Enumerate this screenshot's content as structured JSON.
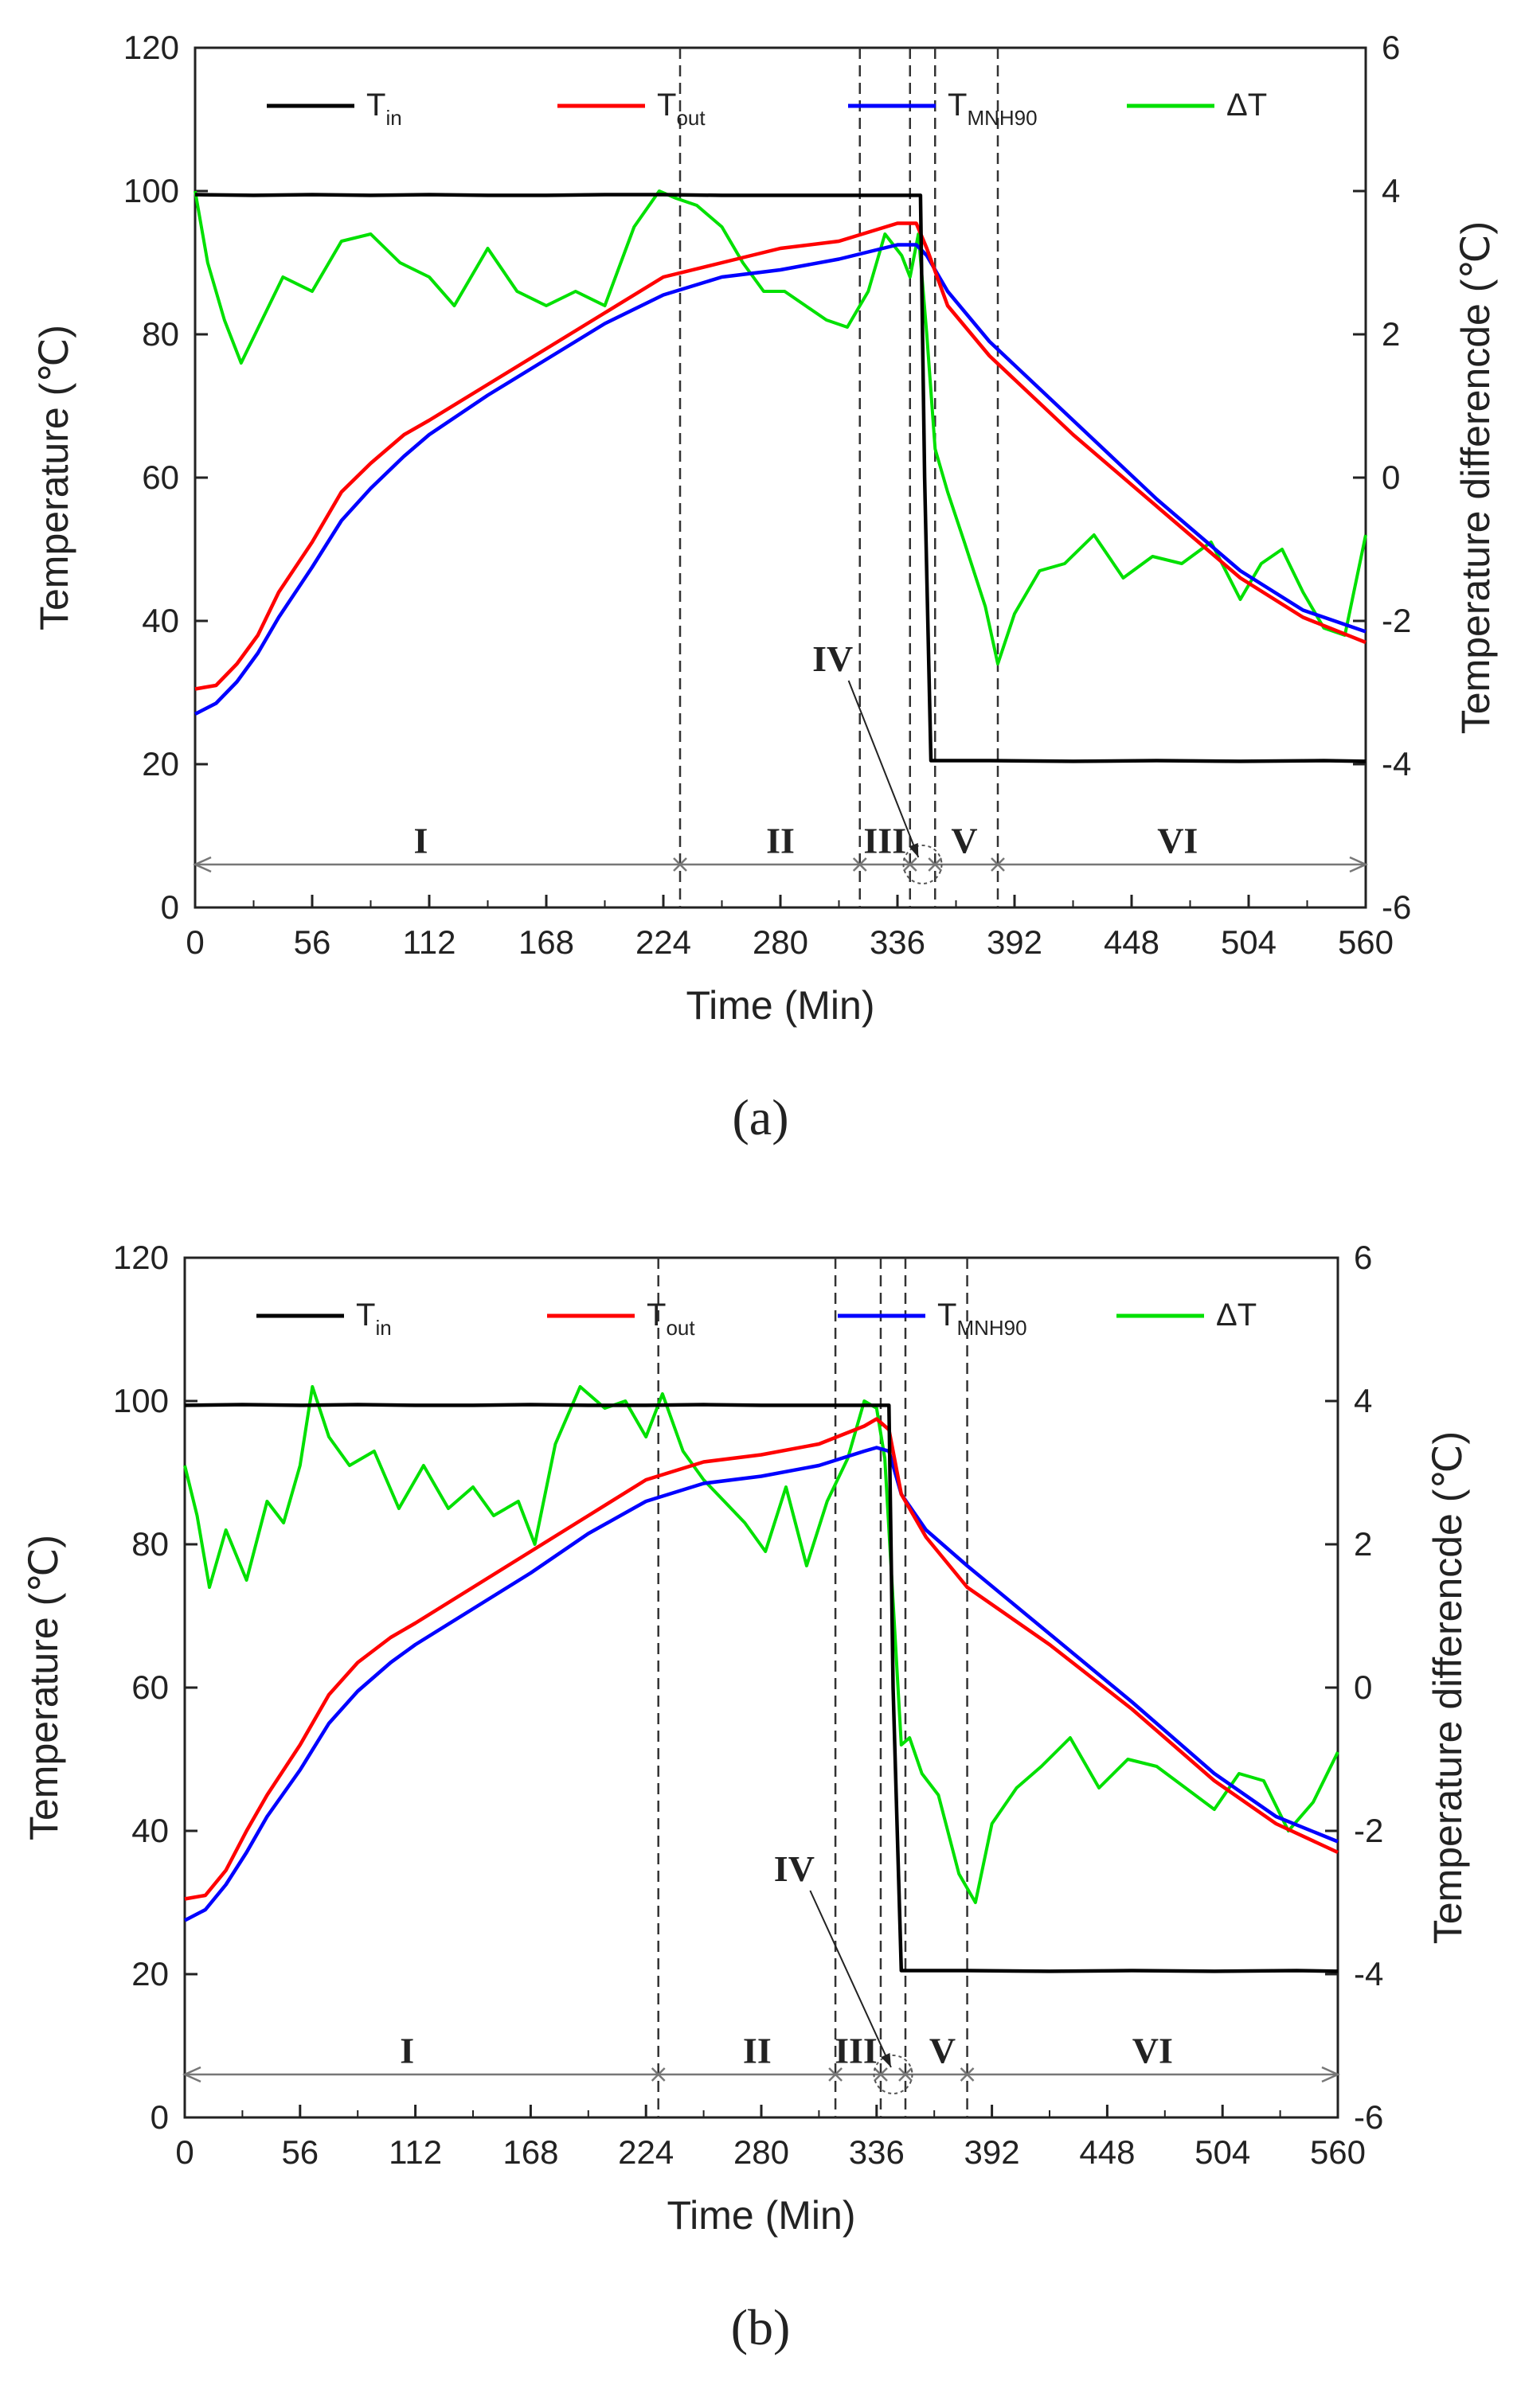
{
  "colors": {
    "T_in": "#000000",
    "T_out": "#ff0000",
    "T_MNH90": "#0000ff",
    "delta_T": "#00e000",
    "axis": "#222222",
    "stage_divider": "#333333",
    "stage_arrow": "#777777"
  },
  "chart_data": [
    {
      "type": "line",
      "panel_label": "(a)",
      "xlabel": "Time (Min)",
      "ylabel_left": "Temperature (℃)",
      "ylabel_right": "Temperature differencde (℃)",
      "xlim": [
        0,
        560
      ],
      "ylim_left": [
        0,
        120
      ],
      "ylim_right": [
        -6,
        6
      ],
      "x_ticks": [
        "0",
        "56",
        "112",
        "168",
        "224",
        "280",
        "336",
        "392",
        "448",
        "504",
        "560"
      ],
      "y_ticks_left": [
        "0",
        "20",
        "40",
        "60",
        "80",
        "100",
        "120"
      ],
      "y_ticks_right": [
        "-6",
        "-4",
        "-2",
        "0",
        "2",
        "4",
        "6"
      ],
      "legend_position": "top",
      "legend": [
        {
          "key": "T_in",
          "base": "T",
          "sub": "in"
        },
        {
          "key": "T_out",
          "base": "T",
          "sub": "out"
        },
        {
          "key": "T_MNH90",
          "base": "T",
          "sub": "MNH90"
        },
        {
          "key": "delta_T",
          "base": "ΔT",
          "sub": ""
        }
      ],
      "stage_boundaries": [
        0,
        232,
        318,
        342,
        354,
        384,
        560
      ],
      "stage_labels": [
        "I",
        "II",
        "III",
        "IV",
        "V",
        "VI"
      ],
      "stage_label_x": [
        108,
        280,
        330,
        316,
        368,
        470
      ],
      "iv_annotation": {
        "label": "IV",
        "label_at": [
          305,
          33
        ],
        "arrow_to": [
          346,
          7
        ]
      },
      "series": [
        {
          "key": "T_in",
          "axis": "left",
          "x": [
            0,
            28,
            56,
            84,
            112,
            140,
            168,
            196,
            224,
            252,
            280,
            308,
            336,
            347,
            349,
            352,
            380,
            420,
            460,
            500,
            540,
            560
          ],
          "y": [
            99.5,
            99.4,
            99.5,
            99.4,
            99.5,
            99.4,
            99.4,
            99.5,
            99.5,
            99.4,
            99.4,
            99.4,
            99.4,
            99.4,
            60,
            20.5,
            20.5,
            20.4,
            20.5,
            20.4,
            20.5,
            20.4
          ]
        },
        {
          "key": "T_out",
          "axis": "left",
          "x": [
            0,
            10,
            20,
            30,
            40,
            56,
            70,
            84,
            100,
            112,
            140,
            168,
            196,
            224,
            252,
            280,
            308,
            336,
            345,
            350,
            360,
            380,
            420,
            460,
            500,
            530,
            560
          ],
          "y": [
            30.5,
            31,
            34,
            38,
            44,
            51,
            58,
            62,
            66,
            68,
            73,
            78,
            83,
            88,
            90,
            92,
            93,
            95.5,
            95.5,
            92,
            84,
            77,
            66,
            56,
            46,
            40.5,
            37
          ]
        },
        {
          "key": "T_MNH90",
          "axis": "left",
          "x": [
            0,
            10,
            20,
            30,
            40,
            56,
            70,
            84,
            100,
            112,
            140,
            168,
            196,
            224,
            252,
            280,
            308,
            336,
            345,
            350,
            360,
            380,
            420,
            460,
            500,
            530,
            560
          ],
          "y": [
            27,
            28.5,
            31.5,
            35.5,
            40.5,
            47.5,
            54,
            58.5,
            63,
            66,
            71.5,
            76.5,
            81.5,
            85.5,
            88,
            89,
            90.5,
            92.5,
            92.5,
            91,
            86,
            79,
            68,
            57,
            47,
            41.5,
            38.5
          ]
        },
        {
          "key": "delta_T",
          "axis": "right",
          "x": [
            0,
            6,
            14,
            22,
            32,
            42,
            56,
            70,
            84,
            98,
            112,
            124,
            140,
            154,
            168,
            182,
            196,
            210,
            222,
            230,
            240,
            252,
            262,
            272,
            282,
            292,
            302,
            312,
            322,
            330,
            338,
            342,
            346,
            350,
            354,
            360,
            368,
            378,
            384,
            392,
            404,
            416,
            430,
            444,
            458,
            472,
            486,
            500,
            510,
            520,
            530,
            540,
            550,
            560
          ],
          "y": [
            4,
            3,
            2.2,
            1.6,
            2.2,
            2.8,
            2.6,
            3.3,
            3.4,
            3.0,
            2.8,
            2.4,
            3.2,
            2.6,
            2.4,
            2.6,
            2.4,
            3.5,
            4.0,
            3.9,
            3.8,
            3.5,
            3.0,
            2.6,
            2.6,
            2.4,
            2.2,
            2.1,
            2.6,
            3.4,
            3.1,
            2.8,
            3.4,
            2.0,
            0.4,
            -0.2,
            -0.9,
            -1.8,
            -2.6,
            -1.9,
            -1.3,
            -1.2,
            -0.8,
            -1.4,
            -1.1,
            -1.2,
            -0.9,
            -1.7,
            -1.2,
            -1.0,
            -1.6,
            -2.1,
            -2.2,
            -0.8
          ]
        }
      ]
    },
    {
      "type": "line",
      "panel_label": "(b)",
      "xlabel": "Time (Min)",
      "ylabel_left": "Temperature (℃)",
      "ylabel_right": "Temperature differencde (℃)",
      "xlim": [
        0,
        560
      ],
      "ylim_left": [
        0,
        120
      ],
      "ylim_right": [
        -6,
        6
      ],
      "x_ticks": [
        "0",
        "56",
        "112",
        "168",
        "224",
        "280",
        "336",
        "392",
        "448",
        "504",
        "560"
      ],
      "y_ticks_left": [
        "0",
        "20",
        "40",
        "60",
        "80",
        "100",
        "120"
      ],
      "y_ticks_right": [
        "-6",
        "-4",
        "-2",
        "0",
        "2",
        "4",
        "6"
      ],
      "legend_position": "top",
      "legend": [
        {
          "key": "T_in",
          "base": "T",
          "sub": "in"
        },
        {
          "key": "T_out",
          "base": "T",
          "sub": "out"
        },
        {
          "key": "T_MNH90",
          "base": "T",
          "sub": "MNH90"
        },
        {
          "key": "delta_T",
          "base": "ΔT",
          "sub": ""
        }
      ],
      "stage_boundaries": [
        0,
        230,
        316,
        338,
        350,
        380,
        560
      ],
      "stage_labels": [
        "I",
        "II",
        "III",
        "IV",
        "V",
        "VI"
      ],
      "stage_label_x": [
        108,
        278,
        326,
        300,
        368,
        470
      ],
      "iv_annotation": {
        "label": "IV",
        "label_at": [
          296,
          33
        ],
        "arrow_to": [
          343,
          7
        ]
      },
      "series": [
        {
          "key": "T_in",
          "axis": "left",
          "x": [
            0,
            28,
            56,
            84,
            112,
            140,
            168,
            196,
            224,
            252,
            280,
            308,
            336,
            342,
            344,
            348,
            380,
            420,
            460,
            500,
            540,
            560
          ],
          "y": [
            99.4,
            99.5,
            99.4,
            99.5,
            99.4,
            99.4,
            99.5,
            99.4,
            99.4,
            99.5,
            99.4,
            99.4,
            99.4,
            99.4,
            60,
            20.5,
            20.5,
            20.4,
            20.5,
            20.4,
            20.5,
            20.4
          ]
        },
        {
          "key": "T_out",
          "axis": "left",
          "x": [
            0,
            10,
            20,
            30,
            40,
            56,
            70,
            84,
            100,
            112,
            140,
            168,
            196,
            224,
            252,
            280,
            308,
            330,
            336,
            342,
            348,
            360,
            380,
            420,
            460,
            500,
            530,
            560
          ],
          "y": [
            30.5,
            31,
            34.5,
            40,
            45,
            52,
            59,
            63.5,
            67,
            69,
            74,
            79,
            84,
            89,
            91.5,
            92.5,
            94,
            96.5,
            97.5,
            96,
            87,
            81,
            74,
            66,
            57,
            47,
            41,
            37
          ]
        },
        {
          "key": "T_MNH90",
          "axis": "left",
          "x": [
            0,
            10,
            20,
            30,
            40,
            56,
            70,
            84,
            100,
            112,
            140,
            168,
            196,
            224,
            252,
            280,
            308,
            330,
            336,
            342,
            348,
            360,
            380,
            420,
            460,
            500,
            530,
            560
          ],
          "y": [
            27.5,
            29,
            32.5,
            37,
            42,
            48.5,
            55,
            59.5,
            63.5,
            66,
            71,
            76,
            81.5,
            86,
            88.5,
            89.5,
            91,
            93,
            93.5,
            93,
            87,
            82,
            77,
            67.5,
            58,
            48,
            42,
            38.5
          ]
        },
        {
          "key": "delta_T",
          "axis": "right",
          "x": [
            0,
            6,
            12,
            20,
            30,
            40,
            48,
            56,
            62,
            70,
            80,
            92,
            104,
            116,
            128,
            140,
            150,
            162,
            170,
            180,
            192,
            204,
            214,
            224,
            232,
            242,
            252,
            262,
            272,
            282,
            292,
            302,
            312,
            322,
            330,
            336,
            340,
            344,
            348,
            352,
            358,
            366,
            376,
            384,
            392,
            404,
            416,
            430,
            444,
            458,
            472,
            486,
            500,
            512,
            524,
            536,
            548,
            560
          ],
          "y": [
            3.1,
            2.4,
            1.4,
            2.2,
            1.5,
            2.6,
            2.3,
            3.1,
            4.2,
            3.5,
            3.1,
            3.3,
            2.5,
            3.1,
            2.5,
            2.8,
            2.4,
            2.6,
            2.0,
            3.4,
            4.2,
            3.9,
            4.0,
            3.5,
            4.1,
            3.3,
            2.9,
            2.6,
            2.3,
            1.9,
            2.8,
            1.7,
            2.6,
            3.2,
            4.0,
            3.9,
            3.2,
            1.2,
            -0.8,
            -0.7,
            -1.2,
            -1.5,
            -2.6,
            -3.0,
            -1.9,
            -1.4,
            -1.1,
            -0.7,
            -1.4,
            -1.0,
            -1.1,
            -1.4,
            -1.7,
            -1.2,
            -1.3,
            -2.0,
            -1.6,
            -0.9
          ]
        }
      ]
    }
  ]
}
